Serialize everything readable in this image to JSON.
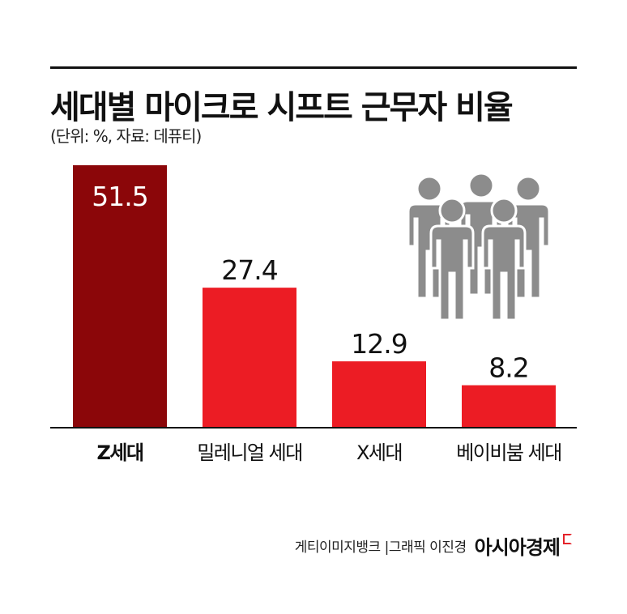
{
  "header": {
    "title": "세대별 마이크로 시프트 근무자 비율",
    "subtitle": "(단위: %, 자료: 데퓨티)"
  },
  "footer": {
    "credit_left": "게티이미지뱅크 | ",
    "credit_right": "그래픽 이진경",
    "brand": "아시아경제"
  },
  "colors": {
    "highlight_bar": "#8b0609",
    "bar": "#ec1c24",
    "icon": "#8c8c8c",
    "text": "#111111"
  },
  "icon": {
    "name": "people-group-icon"
  },
  "chart_data": {
    "type": "bar",
    "categories": [
      "Z세대",
      "밀레니얼 세대",
      "X세대",
      "베이비붐 세대"
    ],
    "values": [
      51.5,
      27.4,
      12.9,
      8.2
    ],
    "value_labels": [
      "51.5",
      "27.4",
      "12.9",
      "8.2"
    ],
    "highlight_index": 0,
    "ylim": [
      0,
      51.5
    ],
    "grid": false,
    "legend": "none"
  }
}
